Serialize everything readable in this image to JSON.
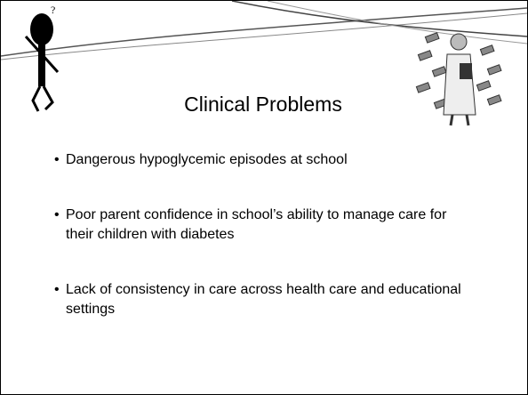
{
  "slide": {
    "title": "Clinical Problems",
    "bullets": [
      "Dangerous hypoglycemic episodes at school",
      "Poor parent confidence in school’s ability to manage care for their children with diabetes",
      "Lack of consistency in care across health care and educational settings"
    ]
  }
}
